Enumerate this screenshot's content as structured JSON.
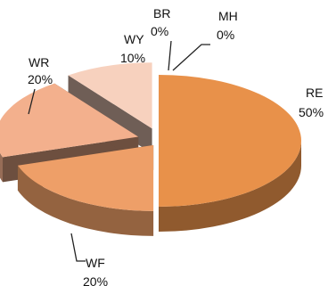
{
  "chart_data": {
    "type": "pie",
    "style": "3d-exploded",
    "title": "",
    "legend": "none",
    "slices": [
      {
        "name": "RE",
        "value": 50,
        "label": "50%",
        "color": "#E8914A"
      },
      {
        "name": "WF",
        "value": 20,
        "label": "20%",
        "color": "#EE9F68"
      },
      {
        "name": "WR",
        "value": 20,
        "label": "20%",
        "color": "#F3B08D"
      },
      {
        "name": "WY",
        "value": 10,
        "label": "10%",
        "color": "#F7D1BE"
      },
      {
        "name": "BR",
        "value": 0,
        "label": "0%",
        "color": "#E8914A"
      },
      {
        "name": "MH",
        "value": 0,
        "label": "0%",
        "color": "#E8914A"
      }
    ]
  }
}
